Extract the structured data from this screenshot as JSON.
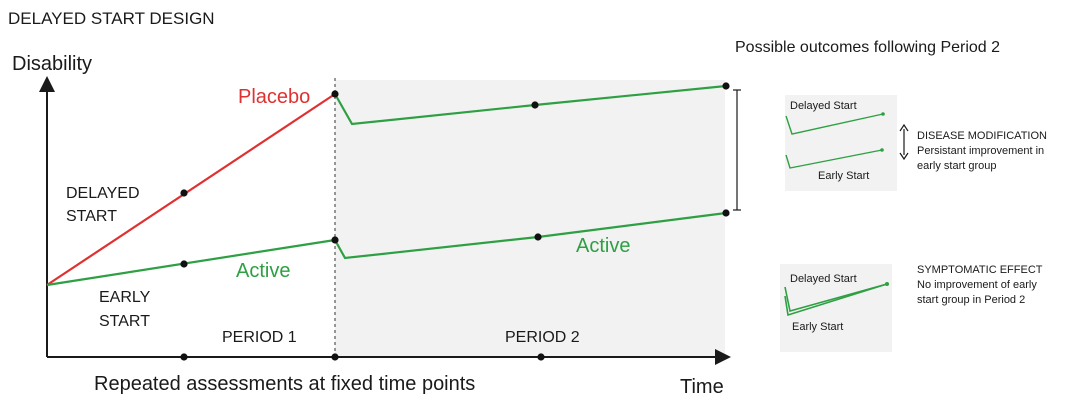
{
  "title": "DELAYED START DESIGN",
  "y_axis_label": "Disability",
  "x_axis_label": "Time",
  "x_axis_caption": "Repeated assessments at fixed time points",
  "labels": {
    "placebo": "Placebo",
    "active_period1": "Active",
    "active_period2": "Active",
    "delayed_start_line1": "DELAYED",
    "delayed_start_line2": "START",
    "early_start_line1": "EARLY",
    "early_start_line2": "START",
    "period1": "PERIOD 1",
    "period2": "PERIOD 2"
  },
  "outcomes": {
    "heading": "Possible outcomes following Period 2",
    "disease_modification": {
      "delayed_label": "Delayed Start",
      "early_label": "Early Start",
      "title": "DISEASE MODIFICATION",
      "desc_line1": "Persistant improvement in",
      "desc_line2": "early start group"
    },
    "symptomatic_effect": {
      "delayed_label": "Delayed Start",
      "early_label": "Early Start",
      "title": "SYMPTOMATIC EFFECT",
      "desc_line1": "No improvement of early",
      "desc_line2": "start group in Period 2"
    }
  },
  "colors": {
    "placebo": "#e03131",
    "active": "#2ea043",
    "axis": "#1a1a1a",
    "period2_shade": "#f2f2f2"
  }
}
